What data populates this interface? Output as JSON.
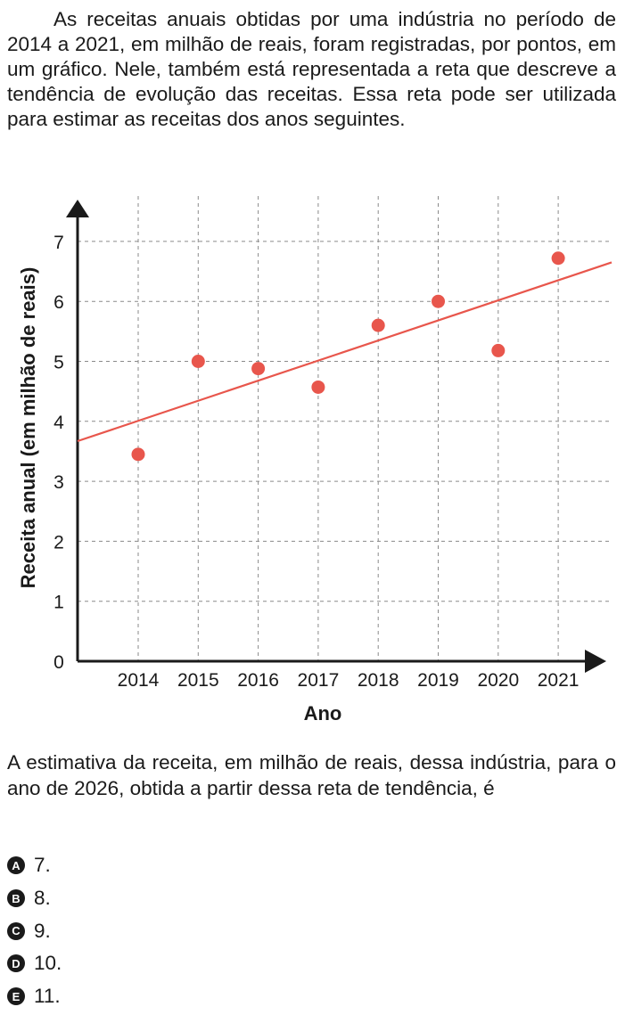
{
  "intro": "As receitas anuais obtidas por uma indústria no período de 2014 a 2021, em milhão de reais, foram registradas, por pontos, em um gráfico. Nele, também está representada a reta que descreve a tendência de evolução das receitas. Essa reta pode ser utilizada para estimar as receitas dos anos seguintes.",
  "question": "A estimativa da receita, em milhão de reais, dessa indústria, para o ano de 2026, obtida a partir dessa reta de tendência, é",
  "options": [
    {
      "letter": "A",
      "text": "7."
    },
    {
      "letter": "B",
      "text": "8."
    },
    {
      "letter": "C",
      "text": "9."
    },
    {
      "letter": "D",
      "text": "10."
    },
    {
      "letter": "E",
      "text": "11."
    }
  ],
  "colors": {
    "point": "#e8564c",
    "line": "#e8564c",
    "axis": "#1a1a1a",
    "grid": "#8a8a8a"
  },
  "chart_data": {
    "type": "scatter",
    "title": "",
    "xlabel": "Ano",
    "ylabel": "Receita anual (em milhão de reais)",
    "x": [
      2014,
      2015,
      2016,
      2017,
      2018,
      2019,
      2020,
      2021
    ],
    "y": [
      3.45,
      5.0,
      4.88,
      4.57,
      5.6,
      6.0,
      5.18,
      6.72
    ],
    "yticks": [
      0,
      1,
      2,
      3,
      4,
      5,
      6,
      7
    ],
    "ylim": [
      0,
      7.4
    ],
    "grid": "dashed",
    "trend_line": {
      "x": [
        2013,
        2022
      ],
      "y": [
        3.67,
        6.65
      ]
    }
  }
}
